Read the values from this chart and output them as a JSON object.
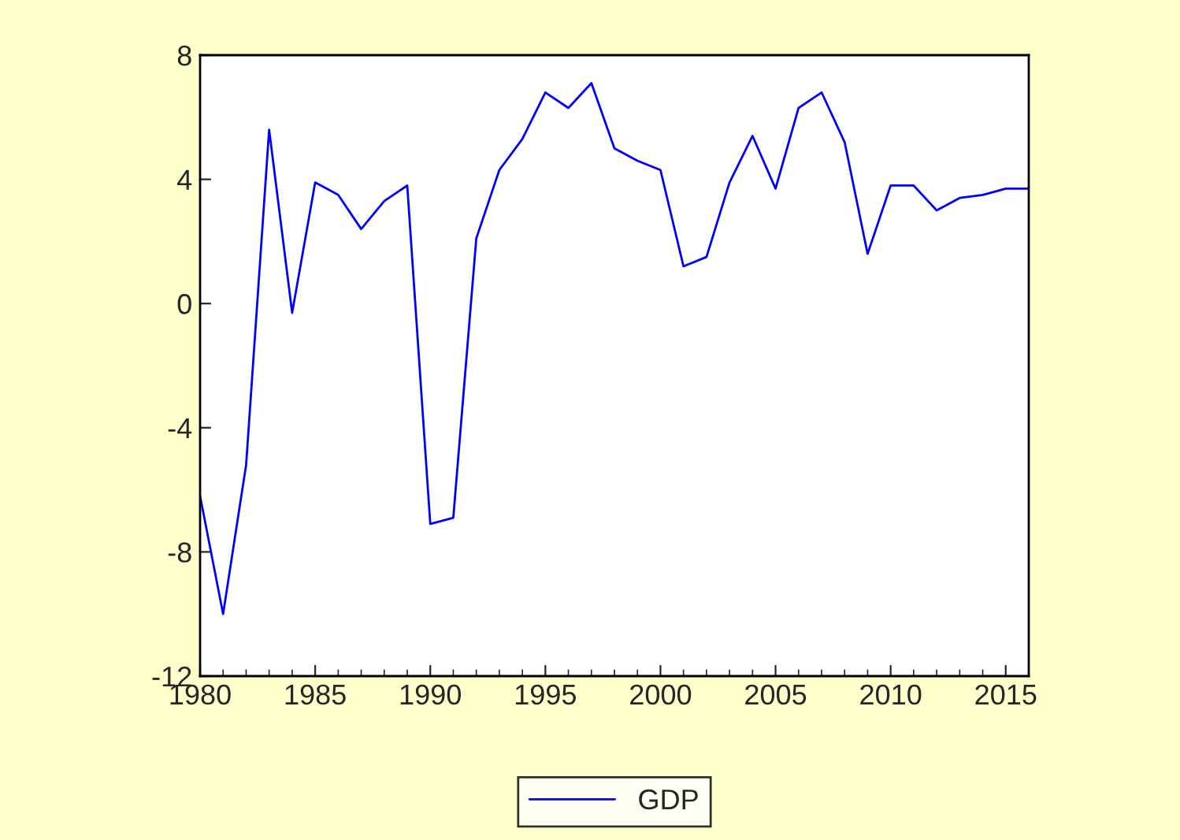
{
  "chart_data": {
    "type": "line",
    "x": [
      1980,
      1981,
      1982,
      1983,
      1984,
      1985,
      1986,
      1987,
      1988,
      1989,
      1990,
      1991,
      1992,
      1993,
      1994,
      1995,
      1996,
      1997,
      1998,
      1999,
      2000,
      2001,
      2002,
      2003,
      2004,
      2005,
      2006,
      2007,
      2008,
      2009,
      2010,
      2011,
      2012,
      2013,
      2014,
      2015,
      2016
    ],
    "series": [
      {
        "name": "GDP",
        "color": "#0000ff",
        "values": [
          -6.2,
          -10.0,
          -5.2,
          5.6,
          -0.3,
          3.9,
          3.5,
          2.4,
          3.3,
          3.8,
          -7.1,
          -6.9,
          2.1,
          4.3,
          5.3,
          6.8,
          6.3,
          7.1,
          5.0,
          4.6,
          4.3,
          1.2,
          1.5,
          3.9,
          5.4,
          3.7,
          6.3,
          6.8,
          5.2,
          1.6,
          3.8,
          3.8,
          3.0,
          3.4,
          3.5,
          3.7,
          3.7
        ]
      }
    ],
    "xlim": [
      1980,
      2016
    ],
    "xticks": [
      1980,
      1985,
      1990,
      1995,
      2000,
      2005,
      2010,
      2015
    ],
    "ylim": [
      -12,
      8
    ],
    "yticks": [
      -12,
      -8,
      -4,
      0,
      4,
      8
    ],
    "grid": false,
    "legend": "bottom",
    "marker": "none",
    "line_style": "solid"
  }
}
